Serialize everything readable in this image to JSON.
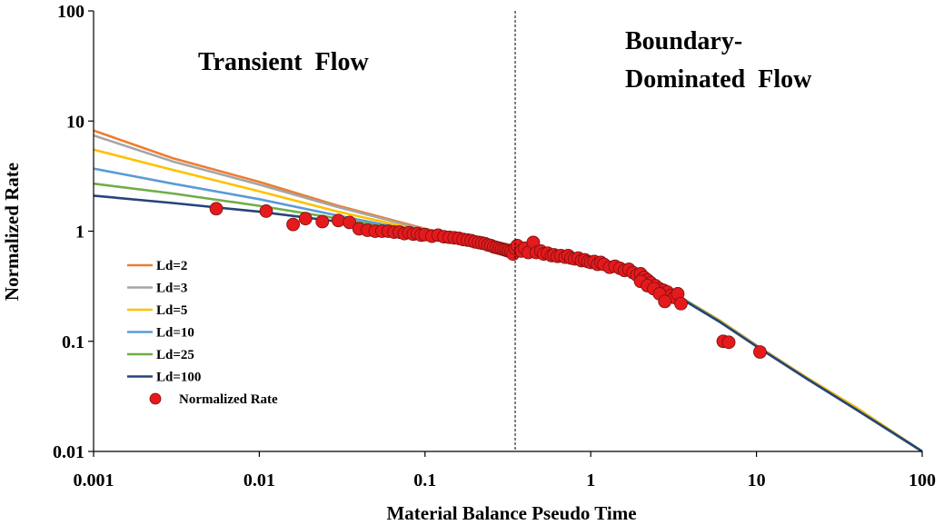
{
  "chart_data": {
    "type": "line",
    "xscale": "log",
    "yscale": "log",
    "xlabel": "Material Balance Pseudo Time",
    "ylabel": "Normalized Rate",
    "xlim": [
      0.001,
      100
    ],
    "ylim": [
      0.01,
      100
    ],
    "xticks": [
      "0.001",
      "0.01",
      "0.1",
      "1",
      "10",
      "100"
    ],
    "yticks": [
      "0.01",
      "0.1",
      "1",
      "10",
      "100"
    ],
    "x_tick_values": [
      0.001,
      0.01,
      0.1,
      1,
      10,
      100
    ],
    "y_tick_values": [
      0.01,
      0.1,
      1,
      10,
      100
    ],
    "divider_x": 0.35,
    "annotations": {
      "transient": "Transient  Flow",
      "boundary_line1": "Boundary-",
      "boundary_line2": "Dominated  Flow"
    },
    "legend_position": "lower-left",
    "series": [
      {
        "name": "Ld=2",
        "color": "#ED7D31",
        "x": [
          0.001,
          0.003,
          0.01,
          0.03,
          0.1,
          0.2,
          0.35,
          0.6,
          1,
          2,
          3.5,
          6,
          10,
          20,
          40,
          100
        ],
        "y": [
          8.2,
          4.6,
          2.8,
          1.7,
          1.05,
          0.85,
          0.74,
          0.64,
          0.55,
          0.42,
          0.25,
          0.155,
          0.092,
          0.047,
          0.025,
          0.01
        ]
      },
      {
        "name": "Ld=3",
        "color": "#A5A5A5",
        "x": [
          0.001,
          0.003,
          0.01,
          0.03,
          0.1,
          0.2,
          0.35,
          0.6,
          1,
          2,
          3.5,
          6,
          10,
          20,
          40,
          100
        ],
        "y": [
          7.4,
          4.3,
          2.65,
          1.65,
          1.03,
          0.84,
          0.73,
          0.63,
          0.55,
          0.42,
          0.25,
          0.154,
          0.092,
          0.047,
          0.025,
          0.01
        ]
      },
      {
        "name": "Ld=5",
        "color": "#FFC000",
        "x": [
          0.001,
          0.003,
          0.01,
          0.03,
          0.1,
          0.2,
          0.35,
          0.6,
          1,
          2,
          3.5,
          6,
          10,
          20,
          40,
          100
        ],
        "y": [
          5.5,
          3.6,
          2.3,
          1.5,
          1.0,
          0.83,
          0.72,
          0.63,
          0.55,
          0.42,
          0.25,
          0.154,
          0.091,
          0.047,
          0.025,
          0.01
        ]
      },
      {
        "name": "Ld=10",
        "color": "#5B9BD5",
        "x": [
          0.001,
          0.003,
          0.01,
          0.03,
          0.1,
          0.2,
          0.35,
          0.6,
          1,
          2,
          3.5,
          6,
          10,
          20,
          40,
          100
        ],
        "y": [
          3.7,
          2.7,
          1.95,
          1.38,
          0.97,
          0.81,
          0.71,
          0.62,
          0.54,
          0.41,
          0.25,
          0.152,
          0.09,
          0.046,
          0.024,
          0.01
        ]
      },
      {
        "name": "Ld=25",
        "color": "#70AD47",
        "x": [
          0.001,
          0.003,
          0.01,
          0.03,
          0.1,
          0.2,
          0.35,
          0.6,
          1,
          2,
          3.5,
          6,
          10,
          20,
          40,
          100
        ],
        "y": [
          2.7,
          2.2,
          1.7,
          1.3,
          0.95,
          0.8,
          0.7,
          0.62,
          0.54,
          0.41,
          0.25,
          0.152,
          0.09,
          0.046,
          0.024,
          0.01
        ]
      },
      {
        "name": "Ld=100",
        "color": "#264478",
        "x": [
          0.001,
          0.003,
          0.01,
          0.03,
          0.1,
          0.2,
          0.35,
          0.6,
          1,
          2,
          3.5,
          6,
          10,
          20,
          40,
          100
        ],
        "y": [
          2.1,
          1.8,
          1.5,
          1.22,
          0.93,
          0.79,
          0.69,
          0.61,
          0.53,
          0.4,
          0.245,
          0.15,
          0.09,
          0.046,
          0.024,
          0.01
        ]
      },
      {
        "name": "Normalized Rate",
        "type": "scatter",
        "color": "#E41A1C",
        "stroke": "#7A1010",
        "x": [
          0.0055,
          0.011,
          0.016,
          0.019,
          0.024,
          0.03,
          0.035,
          0.04,
          0.045,
          0.05,
          0.055,
          0.06,
          0.065,
          0.07,
          0.075,
          0.08,
          0.085,
          0.09,
          0.095,
          0.1,
          0.11,
          0.12,
          0.13,
          0.14,
          0.15,
          0.16,
          0.17,
          0.18,
          0.19,
          0.2,
          0.21,
          0.22,
          0.23,
          0.24,
          0.25,
          0.26,
          0.27,
          0.28,
          0.29,
          0.3,
          0.31,
          0.32,
          0.33,
          0.34,
          0.35,
          0.36,
          0.38,
          0.4,
          0.42,
          0.45,
          0.47,
          0.5,
          0.52,
          0.55,
          0.58,
          0.6,
          0.63,
          0.66,
          0.7,
          0.73,
          0.76,
          0.8,
          0.84,
          0.88,
          0.92,
          0.96,
          1.0,
          1.05,
          1.1,
          1.15,
          1.2,
          1.3,
          1.4,
          1.5,
          1.6,
          1.7,
          1.8,
          1.9,
          2.0,
          2.1,
          2.2,
          2.3,
          2.45,
          2.6,
          2.75,
          2.9,
          3.05,
          3.2,
          3.35,
          3.5,
          2.0,
          2.2,
          2.4,
          2.6,
          2.8,
          6.3,
          6.8,
          10.5
        ],
        "y": [
          1.6,
          1.52,
          1.15,
          1.3,
          1.22,
          1.25,
          1.2,
          1.05,
          1.02,
          1.0,
          1.0,
          1.0,
          0.98,
          0.98,
          0.95,
          0.97,
          0.94,
          0.95,
          0.92,
          0.93,
          0.9,
          0.92,
          0.89,
          0.88,
          0.87,
          0.86,
          0.84,
          0.83,
          0.82,
          0.8,
          0.79,
          0.78,
          0.77,
          0.75,
          0.74,
          0.72,
          0.71,
          0.7,
          0.69,
          0.68,
          0.67,
          0.66,
          0.65,
          0.62,
          0.7,
          0.74,
          0.66,
          0.7,
          0.64,
          0.79,
          0.64,
          0.66,
          0.62,
          0.63,
          0.6,
          0.61,
          0.59,
          0.6,
          0.58,
          0.6,
          0.57,
          0.56,
          0.57,
          0.54,
          0.55,
          0.53,
          0.52,
          0.53,
          0.5,
          0.52,
          0.5,
          0.47,
          0.48,
          0.46,
          0.44,
          0.45,
          0.42,
          0.4,
          0.41,
          0.38,
          0.36,
          0.34,
          0.32,
          0.3,
          0.29,
          0.28,
          0.26,
          0.25,
          0.27,
          0.22,
          0.35,
          0.32,
          0.3,
          0.27,
          0.23,
          0.1,
          0.098,
          0.08
        ]
      }
    ]
  }
}
